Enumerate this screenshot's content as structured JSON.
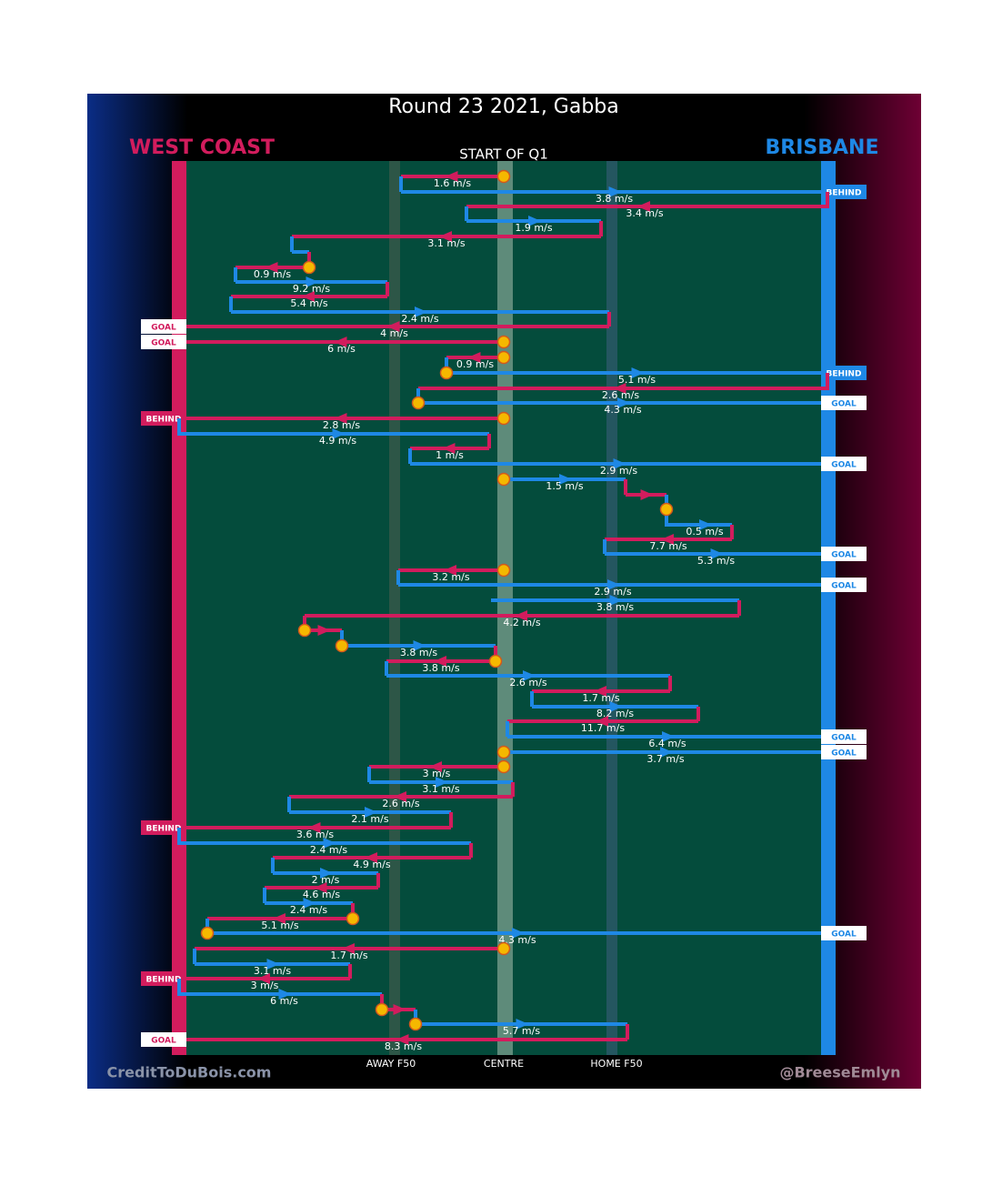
{
  "title": "Round 23 2021, Gabba",
  "teams": {
    "away": "WEST COAST",
    "home": "BRISBANE"
  },
  "start_label": "START OF Q1",
  "axis_labels": [
    "AWAY F50",
    "CENTRE",
    "HOME F50"
  ],
  "credits": {
    "left": "CreditToDuBois.com",
    "right": "@BreeseEmlyn"
  },
  "rows": [
    {
      "speed": "1.6 m/s"
    },
    {
      "speed": "3.8 m/s",
      "outcome": "BEHIND"
    },
    {
      "speed": "3.4 m/s"
    },
    {
      "speed": "1.9 m/s"
    },
    {
      "speed": "3.1 m/s"
    },
    {
      "speed": "0.9 m/s"
    },
    {
      "speed": "9.2 m/s"
    },
    {
      "speed": "5.4 m/s"
    },
    {
      "speed": "2.4 m/s"
    },
    {
      "speed": "4 m/s",
      "outcome": "GOAL"
    },
    {
      "speed": "6 m/s",
      "outcome": "GOAL"
    },
    {
      "speed": "0.9 m/s"
    },
    {
      "speed": "5.1 m/s",
      "outcome": "BEHIND"
    },
    {
      "speed": "2.6 m/s"
    },
    {
      "speed": "4.3 m/s",
      "outcome": "GOAL"
    },
    {
      "speed": "2.8 m/s",
      "outcome": "BEHIND"
    },
    {
      "speed": "4.9 m/s"
    },
    {
      "speed": "1 m/s"
    },
    {
      "speed": "2.9 m/s",
      "outcome": "GOAL"
    },
    {
      "speed": "1.5 m/s"
    },
    {
      "speed": "0.5 m/s"
    },
    {
      "speed": "7.7 m/s"
    },
    {
      "speed": "5.3 m/s",
      "outcome": "GOAL"
    },
    {
      "speed": "3.2 m/s"
    },
    {
      "speed": "2.9 m/s",
      "outcome": "GOAL"
    },
    {
      "speed": "3.8 m/s"
    },
    {
      "speed": "4.2 m/s"
    },
    {
      "speed": "3.8 m/s"
    },
    {
      "speed": "3.8 m/s"
    },
    {
      "speed": "2.6 m/s"
    },
    {
      "speed": "1.7 m/s"
    },
    {
      "speed": "8.2 m/s"
    },
    {
      "speed": "11.7 m/s"
    },
    {
      "speed": "6.4 m/s",
      "outcome": "GOAL"
    },
    {
      "speed": "3.7 m/s",
      "outcome": "GOAL"
    },
    {
      "speed": "3 m/s"
    },
    {
      "speed": "3.1 m/s"
    },
    {
      "speed": "2.6 m/s"
    },
    {
      "speed": "2.1 m/s"
    },
    {
      "speed": "3.6 m/s",
      "outcome": "BEHIND"
    },
    {
      "speed": "2.4 m/s"
    },
    {
      "speed": "4.9 m/s"
    },
    {
      "speed": "2 m/s"
    },
    {
      "speed": "4.6 m/s"
    },
    {
      "speed": "2.4 m/s"
    },
    {
      "speed": "5.1 m/s"
    },
    {
      "speed": "4.3 m/s",
      "outcome": "GOAL"
    },
    {
      "speed": "1.7 m/s"
    },
    {
      "speed": "3.1 m/s"
    },
    {
      "speed": "3 m/s",
      "outcome": "BEHIND"
    },
    {
      "speed": "6 m/s"
    },
    {
      "speed": "5.7 m/s"
    },
    {
      "speed": "8.3 m/s",
      "outcome": "GOAL"
    }
  ]
}
